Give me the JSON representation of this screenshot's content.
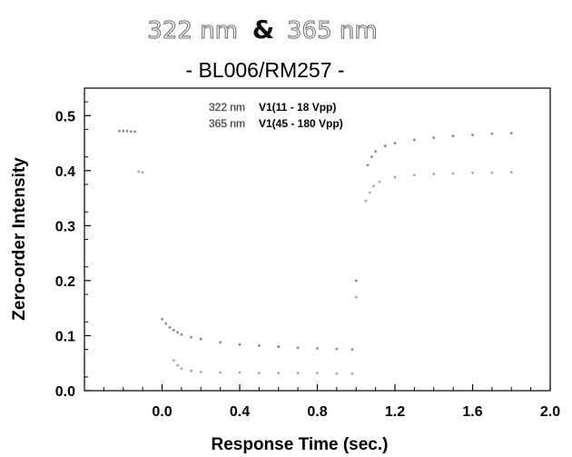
{
  "chart_data": {
    "type": "scatter",
    "title": {
      "wavelength_1": "322 nm",
      "connector": "&",
      "wavelength_2": "365 nm"
    },
    "subtitle": "- BL006/RM257 -",
    "xlabel": "Response Time (sec.)",
    "ylabel": "Zero-order Intensity",
    "xlim": [
      -0.4,
      2.0
    ],
    "ylim": [
      0.0,
      0.55
    ],
    "x_ticks": [
      "0.0",
      "0.4",
      "0.8",
      "1.2",
      "1.6",
      "2.0"
    ],
    "y_ticks": [
      "0.0",
      "0.1",
      "0.2",
      "0.3",
      "0.4",
      "0.5"
    ],
    "grid": false,
    "legend_position": "top-center",
    "series": [
      {
        "name": "322 nm",
        "condition": "V1(11 - 18 Vpp)",
        "color": "#8a8a8a",
        "points": [
          [
            -0.22,
            0.472
          ],
          [
            -0.2,
            0.472
          ],
          [
            -0.18,
            0.472
          ],
          [
            -0.16,
            0.471
          ],
          [
            -0.14,
            0.471
          ],
          [
            0.0,
            0.13
          ],
          [
            0.02,
            0.122
          ],
          [
            0.04,
            0.115
          ],
          [
            0.06,
            0.11
          ],
          [
            0.08,
            0.106
          ],
          [
            0.1,
            0.102
          ],
          [
            0.15,
            0.097
          ],
          [
            0.2,
            0.094
          ],
          [
            0.3,
            0.088
          ],
          [
            0.4,
            0.084
          ],
          [
            0.5,
            0.082
          ],
          [
            0.6,
            0.08
          ],
          [
            0.7,
            0.078
          ],
          [
            0.8,
            0.077
          ],
          [
            0.9,
            0.076
          ],
          [
            0.98,
            0.075
          ],
          [
            1.0,
            0.2
          ],
          [
            1.06,
            0.41
          ],
          [
            1.08,
            0.425
          ],
          [
            1.1,
            0.435
          ],
          [
            1.15,
            0.445
          ],
          [
            1.2,
            0.45
          ],
          [
            1.3,
            0.456
          ],
          [
            1.4,
            0.46
          ],
          [
            1.5,
            0.463
          ],
          [
            1.6,
            0.465
          ],
          [
            1.7,
            0.467
          ],
          [
            1.8,
            0.468
          ]
        ]
      },
      {
        "name": "365 nm",
        "condition": "V1(45 - 180 Vpp)",
        "color": "#a8a8a8",
        "points": [
          [
            -0.12,
            0.398
          ],
          [
            -0.1,
            0.397
          ],
          [
            0.06,
            0.055
          ],
          [
            0.08,
            0.046
          ],
          [
            0.1,
            0.04
          ],
          [
            0.15,
            0.036
          ],
          [
            0.2,
            0.034
          ],
          [
            0.3,
            0.033
          ],
          [
            0.4,
            0.033
          ],
          [
            0.5,
            0.032
          ],
          [
            0.6,
            0.032
          ],
          [
            0.7,
            0.032
          ],
          [
            0.8,
            0.032
          ],
          [
            0.9,
            0.031
          ],
          [
            0.98,
            0.031
          ],
          [
            1.0,
            0.17
          ],
          [
            1.05,
            0.345
          ],
          [
            1.07,
            0.36
          ],
          [
            1.09,
            0.372
          ],
          [
            1.12,
            0.38
          ],
          [
            1.2,
            0.388
          ],
          [
            1.3,
            0.392
          ],
          [
            1.4,
            0.394
          ],
          [
            1.5,
            0.395
          ],
          [
            1.6,
            0.396
          ],
          [
            1.7,
            0.396
          ],
          [
            1.8,
            0.397
          ]
        ]
      }
    ]
  }
}
